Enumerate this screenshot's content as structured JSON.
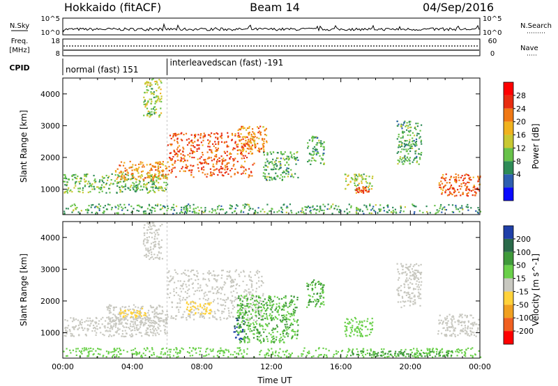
{
  "header": {
    "title": "Hokkaido (fitACF)",
    "beam": "Beam 14",
    "date": "04/Sep/2016"
  },
  "top_panels": {
    "nsky_label": "N.Sky",
    "nsky_ticks": [
      "10^5",
      "10^0"
    ],
    "nsearch_label": "N.Search",
    "nsearch_ticks": [
      "10^5",
      "10^0"
    ],
    "freq_label": "Freq.",
    "freq_unit": "[MHz]",
    "freq_ticks": [
      "18",
      "8"
    ],
    "nave_label": "Nave",
    "nave_ticks": [
      "60",
      "0"
    ],
    "cpid_label": "CPID",
    "cpid_segments": [
      {
        "label": "normal (fast) 151",
        "start_hour": 0,
        "end_hour": 6
      },
      {
        "label": "interleavedscan (fast) -191",
        "start_hour": 6,
        "end_hour": 24
      }
    ]
  },
  "chart_data": [
    {
      "type": "heatmap",
      "panel": "power",
      "ylabel": "Slant Range [km]",
      "xlabel": "",
      "ylim": [
        200,
        4500
      ],
      "xlim_hours": [
        0,
        24
      ],
      "y_ticks": [
        "1000",
        "2000",
        "3000",
        "4000"
      ],
      "colorbar": {
        "label": "Power [dB]",
        "ticks": [
          "28",
          "24",
          "20",
          "16",
          "12",
          "8",
          "4"
        ],
        "colors": [
          "#0a0aff",
          "#2e5fb0",
          "#2e8b57",
          "#68c24a",
          "#c8c832",
          "#f0b21e",
          "#f07814",
          "#e82c10",
          "#ff0000"
        ]
      },
      "regions": [
        {
          "t0": 0.0,
          "t1": 6.0,
          "r0": 900,
          "r1": 1500,
          "level": 14
        },
        {
          "t0": 3.0,
          "t1": 6.0,
          "r0": 1300,
          "r1": 1900,
          "level": 24
        },
        {
          "t0": 6.0,
          "t1": 11.0,
          "r0": 1400,
          "r1": 2800,
          "level": 28
        },
        {
          "t0": 10.0,
          "t1": 11.7,
          "r0": 2200,
          "r1": 3000,
          "level": 24
        },
        {
          "t0": 4.6,
          "t1": 5.7,
          "r0": 3300,
          "r1": 4500,
          "level": 16
        },
        {
          "t0": 11.5,
          "t1": 13.5,
          "r0": 1300,
          "r1": 2200,
          "level": 12
        },
        {
          "t0": 14.0,
          "t1": 15.0,
          "r0": 1800,
          "r1": 2700,
          "level": 12
        },
        {
          "t0": 16.2,
          "t1": 17.8,
          "r0": 1000,
          "r1": 1500,
          "level": 16
        },
        {
          "t0": 16.8,
          "t1": 17.6,
          "r0": 900,
          "r1": 1100,
          "level": 28
        },
        {
          "t0": 19.2,
          "t1": 20.6,
          "r0": 1800,
          "r1": 3200,
          "level": 12
        },
        {
          "t0": 21.6,
          "t1": 24.0,
          "r0": 800,
          "r1": 1500,
          "level": 28
        },
        {
          "t0": 0.0,
          "t1": 24.0,
          "r0": 250,
          "r1": 550,
          "level": 12
        }
      ]
    },
    {
      "type": "heatmap",
      "panel": "velocity",
      "ylabel": "Slant Range [km]",
      "xlabel": "Time UT",
      "ylim": [
        200,
        4500
      ],
      "xlim_hours": [
        0,
        24
      ],
      "y_ticks": [
        "1000",
        "2000",
        "3000",
        "4000"
      ],
      "x_ticks": [
        "00:00",
        "04:00",
        "08:00",
        "12:00",
        "16:00",
        "20:00",
        "00:00"
      ],
      "colorbar": {
        "label": "Velocity [m s^-1]",
        "ticks": [
          "200",
          "100",
          "50",
          "15",
          "-15",
          "-50",
          "-100",
          "-200"
        ],
        "colors": [
          "#1f3fa8",
          "#2a6a4a",
          "#3f9a3a",
          "#6ad04a",
          "#c8c8c0",
          "#ffd23a",
          "#f0a020",
          "#f06020",
          "#ff0000"
        ]
      },
      "regions": [
        {
          "t0": 0.0,
          "t1": 6.0,
          "r0": 900,
          "r1": 1500,
          "level": 0
        },
        {
          "t0": 2.5,
          "t1": 6.0,
          "r0": 1300,
          "r1": 1900,
          "level": 0
        },
        {
          "t0": 3.2,
          "t1": 4.8,
          "r0": 1500,
          "r1": 1800,
          "level": -30
        },
        {
          "t0": 6.0,
          "t1": 11.5,
          "r0": 1400,
          "r1": 3000,
          "level": 0
        },
        {
          "t0": 7.0,
          "t1": 8.5,
          "r0": 1600,
          "r1": 2000,
          "level": -30
        },
        {
          "t0": 4.6,
          "t1": 5.7,
          "r0": 3300,
          "r1": 4500,
          "level": 0
        },
        {
          "t0": 9.8,
          "t1": 10.4,
          "r0": 800,
          "r1": 1500,
          "level": 200
        },
        {
          "t0": 10.0,
          "t1": 13.5,
          "r0": 700,
          "r1": 2200,
          "level": 50
        },
        {
          "t0": 14.0,
          "t1": 15.0,
          "r0": 1800,
          "r1": 2700,
          "level": 50
        },
        {
          "t0": 16.2,
          "t1": 17.8,
          "r0": 900,
          "r1": 1500,
          "level": 30
        },
        {
          "t0": 19.2,
          "t1": 20.6,
          "r0": 1800,
          "r1": 3200,
          "level": 0
        },
        {
          "t0": 21.5,
          "t1": 24.0,
          "r0": 900,
          "r1": 1600,
          "level": 0
        },
        {
          "t0": 0.0,
          "t1": 24.0,
          "r0": 250,
          "r1": 550,
          "level": 30
        },
        {
          "t0": 16.5,
          "t1": 22.5,
          "r0": 280,
          "r1": 450,
          "level": 80
        }
      ]
    }
  ]
}
